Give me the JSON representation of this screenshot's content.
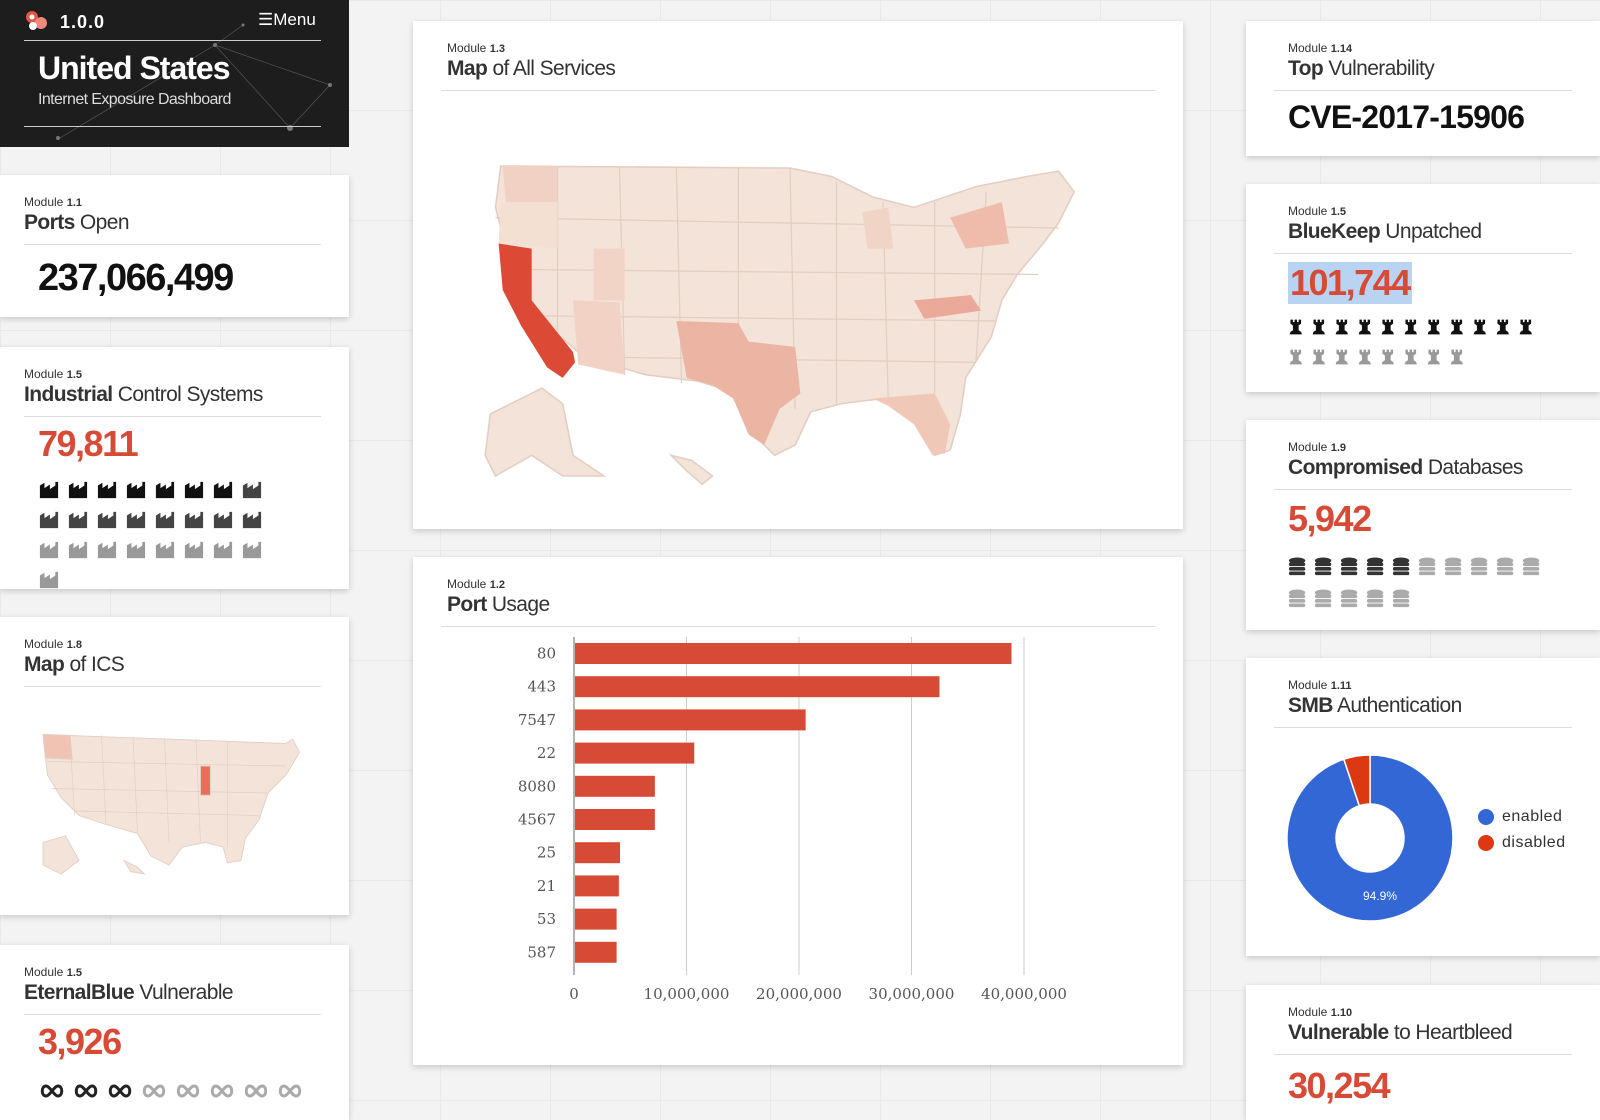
{
  "header": {
    "version": "1.0.0",
    "menu_label": "Menu",
    "country": "United States",
    "subtitle": "Internet Exposure Dashboard"
  },
  "colors": {
    "accent": "#d74b36",
    "dark": "#1d1d1d",
    "blue": "#3367d6",
    "map_base": "#f3e3d8"
  },
  "modules": {
    "ports_open": {
      "module_label": "Module",
      "module_num": "1.1",
      "title_bold": "Ports",
      "title_rest": " Open",
      "value": "237,066,499"
    },
    "ics": {
      "module_label": "Module",
      "module_num": "1.5",
      "title_bold": "Industrial",
      "title_rest": " Control Systems",
      "value": "79,811",
      "icon": "factory-icon",
      "icons_dark": 7,
      "icons_mid": 9,
      "icons_light": 9
    },
    "map_ics": {
      "module_label": "Module",
      "module_num": "1.8",
      "title_bold": "Map",
      "title_rest": " of ICS"
    },
    "eternalblue": {
      "module_label": "Module",
      "module_num": "1.5",
      "title_bold": "EternalBlue",
      "title_rest": " Vulnerable",
      "value": "3,926",
      "icon": "infinity-icon",
      "icons_dark": 3,
      "icons_light": 5
    },
    "map_services": {
      "module_label": "Module",
      "module_num": "1.3",
      "title_bold": "Map",
      "title_rest": " of All Services"
    },
    "port_usage": {
      "module_label": "Module",
      "module_num": "1.2",
      "title_bold": "Port",
      "title_rest": " Usage"
    },
    "top_vuln": {
      "module_label": "Module",
      "module_num": "1.14",
      "title_bold": "Top",
      "title_rest": " Vulnerability",
      "value": "CVE-2017-15906"
    },
    "bluekeep": {
      "module_label": "Module",
      "module_num": "1.5",
      "title_bold": "BlueKeep",
      "title_rest": " Unpatched",
      "value": "101,744",
      "icon": "rook-icon",
      "icons_dark": 11,
      "icons_light": 8
    },
    "databases": {
      "module_label": "Module",
      "module_num": "1.9",
      "title_bold": "Compromised",
      "title_rest": " Databases",
      "value": "5,942",
      "icon": "database-icon",
      "icons_dark": 5,
      "icons_light": 10
    },
    "smb": {
      "module_label": "Module",
      "module_num": "1.11",
      "title_bold": "SMB",
      "title_rest": " Authentication"
    },
    "heartbleed": {
      "module_label": "Module",
      "module_num": "1.10",
      "title_bold": "Vulnerable",
      "title_rest": " to Heartbleed",
      "value": "30,254"
    }
  },
  "chart_data": [
    {
      "type": "bar",
      "title": "Port Usage",
      "orientation": "horizontal",
      "categories": [
        "80",
        "443",
        "7547",
        "22",
        "8080",
        "4567",
        "25",
        "21",
        "53",
        "587"
      ],
      "values": [
        38800000,
        32400000,
        20500000,
        10600000,
        7100000,
        7100000,
        4000000,
        3900000,
        3700000,
        3700000
      ],
      "xlim": [
        0,
        40000000
      ],
      "ticks": [
        "0",
        "10,000,000",
        "20,000,000",
        "30,000,000",
        "40,000,000"
      ],
      "tick_values": [
        0,
        10000000,
        20000000,
        30000000,
        40000000
      ],
      "color": "#d74b36"
    },
    {
      "type": "pie",
      "title": "SMB Authentication",
      "labels": [
        "enabled",
        "disabled"
      ],
      "values": [
        94.9,
        5.1
      ],
      "colors": [
        "#3367d6",
        "#dc3912"
      ],
      "data_label": "94.9%"
    }
  ]
}
